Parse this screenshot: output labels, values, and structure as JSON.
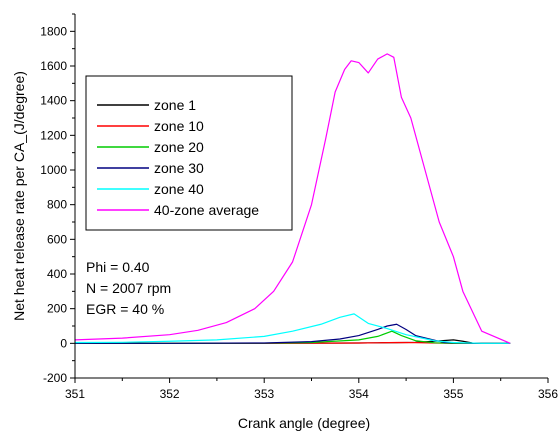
{
  "chart_data": {
    "type": "line",
    "title": "",
    "xlabel": "Crank angle (degree)",
    "ylabel": "Net heat release rate per CA_(J/degree)",
    "xlim": [
      351,
      356
    ],
    "ylim": [
      -200,
      1900
    ],
    "x_ticks": [
      351,
      352,
      353,
      354,
      355,
      356
    ],
    "x_tick_labels": [
      "351",
      "352",
      "353",
      "354",
      "355",
      "356"
    ],
    "y_ticks": [
      -200,
      0,
      200,
      400,
      600,
      800,
      1000,
      1200,
      1400,
      1600,
      1800
    ],
    "y_tick_labels": [
      "-200",
      "0",
      "200",
      "400",
      "600",
      "800",
      "1000",
      "1200",
      "1400",
      "1600",
      "1800"
    ],
    "grid": false,
    "legend_position": "upper-left",
    "series": [
      {
        "name": "zone 1",
        "color": "#000000",
        "x": [
          351,
          352,
          353,
          353.5,
          354,
          354.2,
          354.4,
          354.6,
          354.8,
          355.0,
          355.1,
          355.2,
          355.6
        ],
        "y": [
          0,
          0,
          0,
          1,
          2,
          3,
          4,
          6,
          12,
          20,
          12,
          2,
          0
        ]
      },
      {
        "name": "zone 10",
        "color": "#ff0000",
        "x": [
          351,
          352,
          353,
          353.5,
          354,
          354.2,
          354.4,
          354.6,
          354.8,
          355.0,
          355.6
        ],
        "y": [
          0,
          0,
          0,
          1,
          2,
          3,
          5,
          4,
          2,
          0,
          0
        ]
      },
      {
        "name": "zone 20",
        "color": "#00cc00",
        "x": [
          351,
          352,
          353,
          353.5,
          354,
          354.2,
          354.35,
          354.45,
          354.6,
          354.8,
          355.0,
          355.6
        ],
        "y": [
          0,
          0,
          1,
          5,
          20,
          40,
          70,
          45,
          15,
          3,
          0,
          0
        ]
      },
      {
        "name": "zone 30",
        "color": "#000080",
        "x": [
          351,
          352,
          353,
          353.5,
          353.8,
          354.0,
          354.2,
          354.3,
          354.4,
          354.5,
          354.6,
          354.8,
          354.9,
          355.2,
          355.6
        ],
        "y": [
          0,
          0,
          2,
          10,
          25,
          45,
          80,
          100,
          110,
          80,
          45,
          18,
          5,
          0,
          0
        ]
      },
      {
        "name": "zone 40",
        "color": "#00ffff",
        "x": [
          351,
          351.5,
          352,
          352.5,
          353,
          353.3,
          353.6,
          353.8,
          353.95,
          354.1,
          354.3,
          354.5,
          354.8,
          355.0,
          355.3,
          355.6
        ],
        "y": [
          5,
          6,
          12,
          20,
          40,
          70,
          110,
          150,
          170,
          115,
          85,
          50,
          15,
          5,
          0,
          0
        ]
      },
      {
        "name": "40-zone average",
        "color": "#ff00ff",
        "x": [
          351,
          351.5,
          352,
          352.3,
          352.6,
          352.9,
          353.1,
          353.3,
          353.5,
          353.65,
          353.75,
          353.85,
          353.92,
          354.0,
          354.1,
          354.2,
          354.3,
          354.37,
          354.45,
          354.55,
          354.7,
          354.85,
          355.0,
          355.1,
          355.3,
          355.6
        ],
        "y": [
          20,
          30,
          50,
          75,
          120,
          200,
          300,
          470,
          800,
          1180,
          1450,
          1580,
          1630,
          1620,
          1560,
          1640,
          1670,
          1650,
          1420,
          1300,
          1000,
          700,
          500,
          300,
          70,
          0
        ]
      }
    ],
    "annotations": [
      "Phi = 0.40",
      "N = 2007 rpm",
      "EGR = 40 %"
    ]
  }
}
